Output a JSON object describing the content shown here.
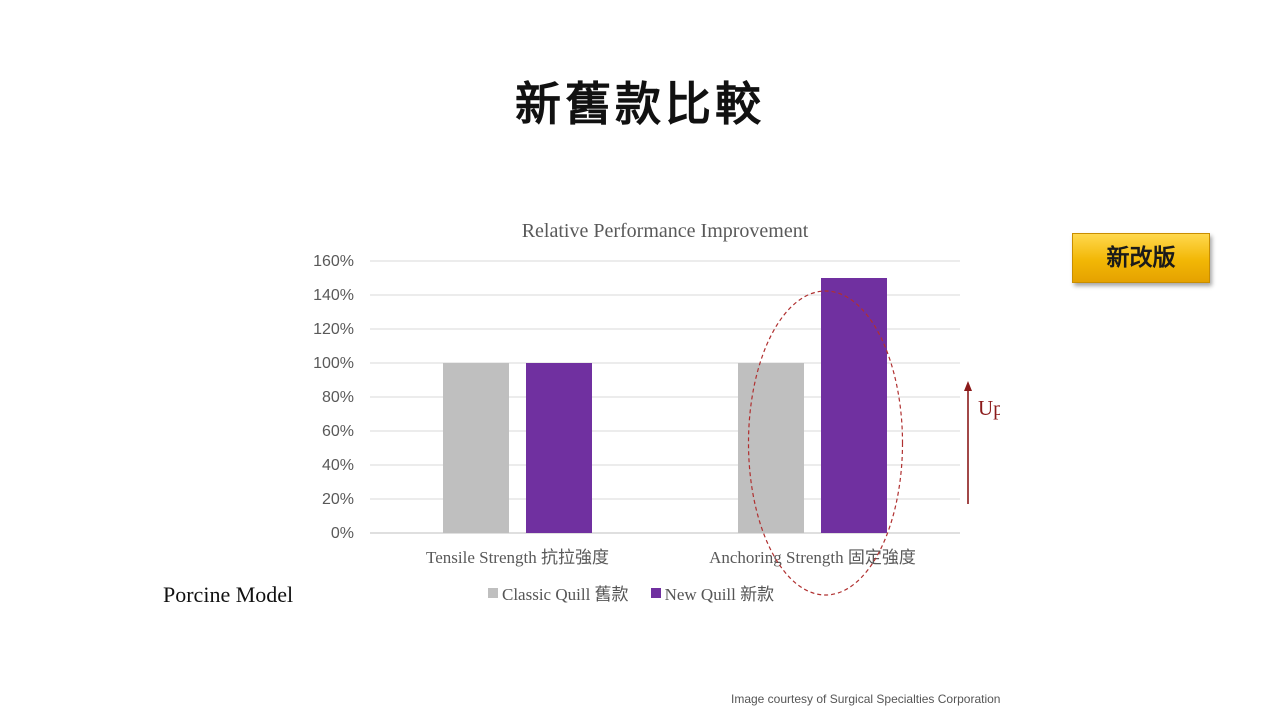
{
  "slide": {
    "title": "新舊款比較",
    "badge": "新改版",
    "model_note": "Porcine Model",
    "credit": "Image courtesy of Surgical Specialties Corporation",
    "annotation": "Upgrade",
    "annotation_color": "#8b1a1a"
  },
  "chart_data": {
    "type": "bar",
    "title": "Relative Performance Improvement",
    "categories": [
      "Tensile Strength 抗拉強度",
      "Anchoring Strength 固定強度"
    ],
    "series": [
      {
        "name": "Classic Quill 舊款",
        "values": [
          100,
          100
        ],
        "color": "#bfbfbf"
      },
      {
        "name": "New Quill 新款",
        "values": [
          100,
          150
        ],
        "color": "#7030a0"
      }
    ],
    "yticks": [
      "0%",
      "20%",
      "40%",
      "60%",
      "80%",
      "100%",
      "120%",
      "140%",
      "160%"
    ],
    "ylim": [
      0,
      160
    ],
    "grid": true,
    "legend": "bottom"
  }
}
